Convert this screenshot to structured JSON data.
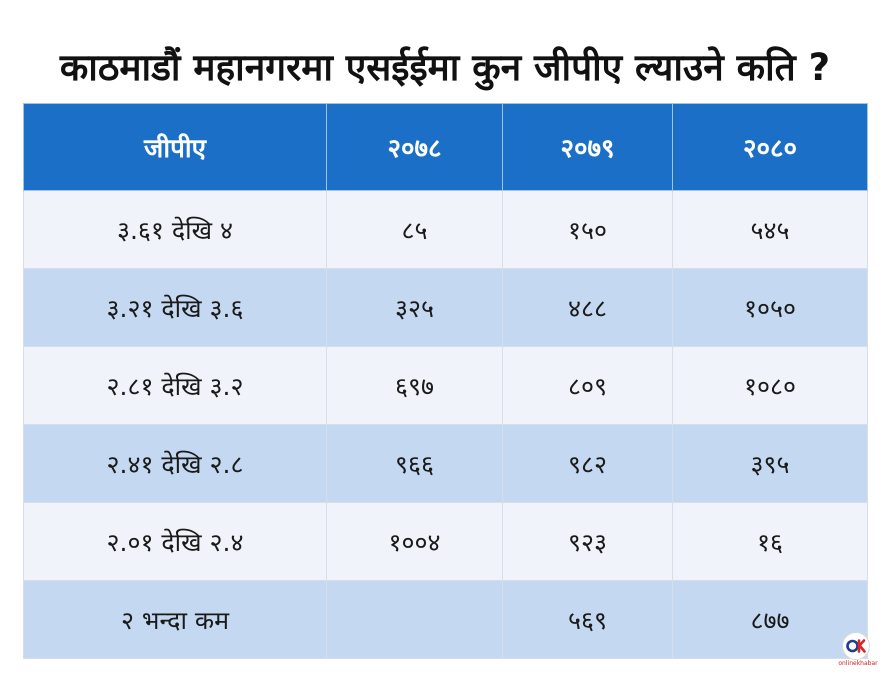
{
  "title": "काठमाडौं महानगरमा एसईईमा कुन जीपीए ल्याउने कति ?",
  "chart_data": {
    "type": "table",
    "title": "काठमाडौं महानगरमा एसईईमा कुन जीपीए ल्याउने कति ?",
    "columns": [
      "जीपीए",
      "२०७८",
      "२०७९",
      "२०८०"
    ],
    "rows": [
      [
        "३.६१ देखि ४",
        "८५",
        "१५०",
        "५४५"
      ],
      [
        "३.२१ देखि ३.६",
        "३२५",
        "४८८",
        "१०५०"
      ],
      [
        "२.८१ देखि ३.२",
        "६९७",
        "८०९",
        "१०८०"
      ],
      [
        "२.४१ देखि २.८",
        "९६६",
        "९८२",
        "३९५"
      ],
      [
        "२.०१ देखि २.४",
        "१००४",
        "९२३",
        "१६"
      ],
      [
        "२ भन्दा कम",
        "",
        "५६९",
        "८७७"
      ]
    ],
    "colors": {
      "header": "#1b6fc7",
      "row_light": "#f0f4fa",
      "row_dark": "#c4d9f1"
    }
  },
  "logo": {
    "text": "OK",
    "caption": "onlinekhabar",
    "icon": "onlinekhabar-logo-icon"
  }
}
